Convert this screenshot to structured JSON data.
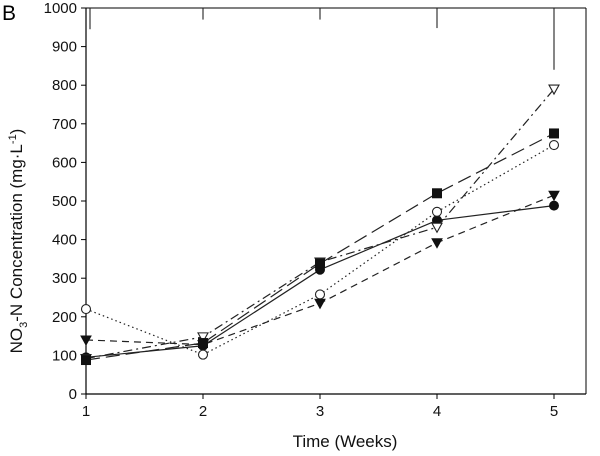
{
  "panel_label": "B",
  "chart_data": {
    "type": "line",
    "title": "",
    "xlabel": "Time (Weeks)",
    "ylabel": {
      "prefix": "NO",
      "subscript": "3",
      "middle": "-N Concentration (mg",
      "dot": "·",
      "unit": "L",
      "superscript": "-1",
      "suffix": ")"
    },
    "x": [
      1,
      2,
      3,
      4,
      5
    ],
    "xlim": [
      1,
      5
    ],
    "ylim": [
      0,
      1000
    ],
    "x_ticks": [
      "1",
      "2",
      "3",
      "4",
      "5"
    ],
    "y_ticks": [
      "0",
      "100",
      "200",
      "300",
      "400",
      "500",
      "600",
      "700",
      "800",
      "900",
      "1000"
    ],
    "error_bar_top": [
      1000,
      1000,
      1000,
      1000,
      1000
    ],
    "error_bar_bottom": [
      945,
      970,
      970,
      948,
      840
    ],
    "series": [
      {
        "name": "filled circle",
        "marker": "circle-filled",
        "line": "solid",
        "values": [
          95,
          125,
          322,
          450,
          488
        ]
      },
      {
        "name": "open circle",
        "marker": "circle-open",
        "line": "dotted",
        "values": [
          220,
          102,
          258,
          472,
          645
        ]
      },
      {
        "name": "filled triangle",
        "marker": "triangle-down-filled",
        "line": "dashed",
        "values": [
          140,
          128,
          235,
          392,
          515
        ]
      },
      {
        "name": "open triangle",
        "marker": "triangle-down-open",
        "line": "dashdot",
        "values": [
          92,
          148,
          342,
          432,
          790
        ]
      },
      {
        "name": "filled square",
        "marker": "square-filled",
        "line": "longdash",
        "values": [
          88,
          132,
          338,
          520,
          675
        ]
      }
    ]
  }
}
